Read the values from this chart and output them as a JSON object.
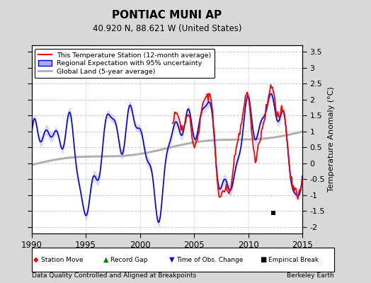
{
  "title": "PONTIAC MUNI AP",
  "subtitle": "40.920 N, 88.621 W (United States)",
  "ylabel_right": "Temperature Anomaly (°C)",
  "footer_left": "Data Quality Controlled and Aligned at Breakpoints",
  "footer_right": "Berkeley Earth",
  "xlim": [
    1990,
    2015
  ],
  "ylim": [
    -2.2,
    3.7
  ],
  "yticks": [
    -2,
    -1.5,
    -1,
    -0.5,
    0,
    0.5,
    1,
    1.5,
    2,
    2.5,
    3,
    3.5
  ],
  "xticks": [
    1990,
    1995,
    2000,
    2005,
    2010,
    2015
  ],
  "bg_color": "#d8d8d8",
  "plot_bg_color": "#ffffff",
  "grid_color": "#cccccc",
  "line_station_color": "#ff0000",
  "line_regional_color": "#0000dd",
  "line_global_color": "#b0b0b0",
  "shade_regional_color": "#aaaaee",
  "empirical_break_x": 2012.3,
  "empirical_break_y": -1.55,
  "legend_items": [
    {
      "label": "This Temperature Station (12-month average)",
      "color": "#ff0000",
      "lw": 1.5
    },
    {
      "label": "Regional Expectation with 95% uncertainty",
      "color": "#0000dd",
      "lw": 1.5
    },
    {
      "label": "Global Land (5-year average)",
      "color": "#b0b0b0",
      "lw": 2.0
    }
  ]
}
